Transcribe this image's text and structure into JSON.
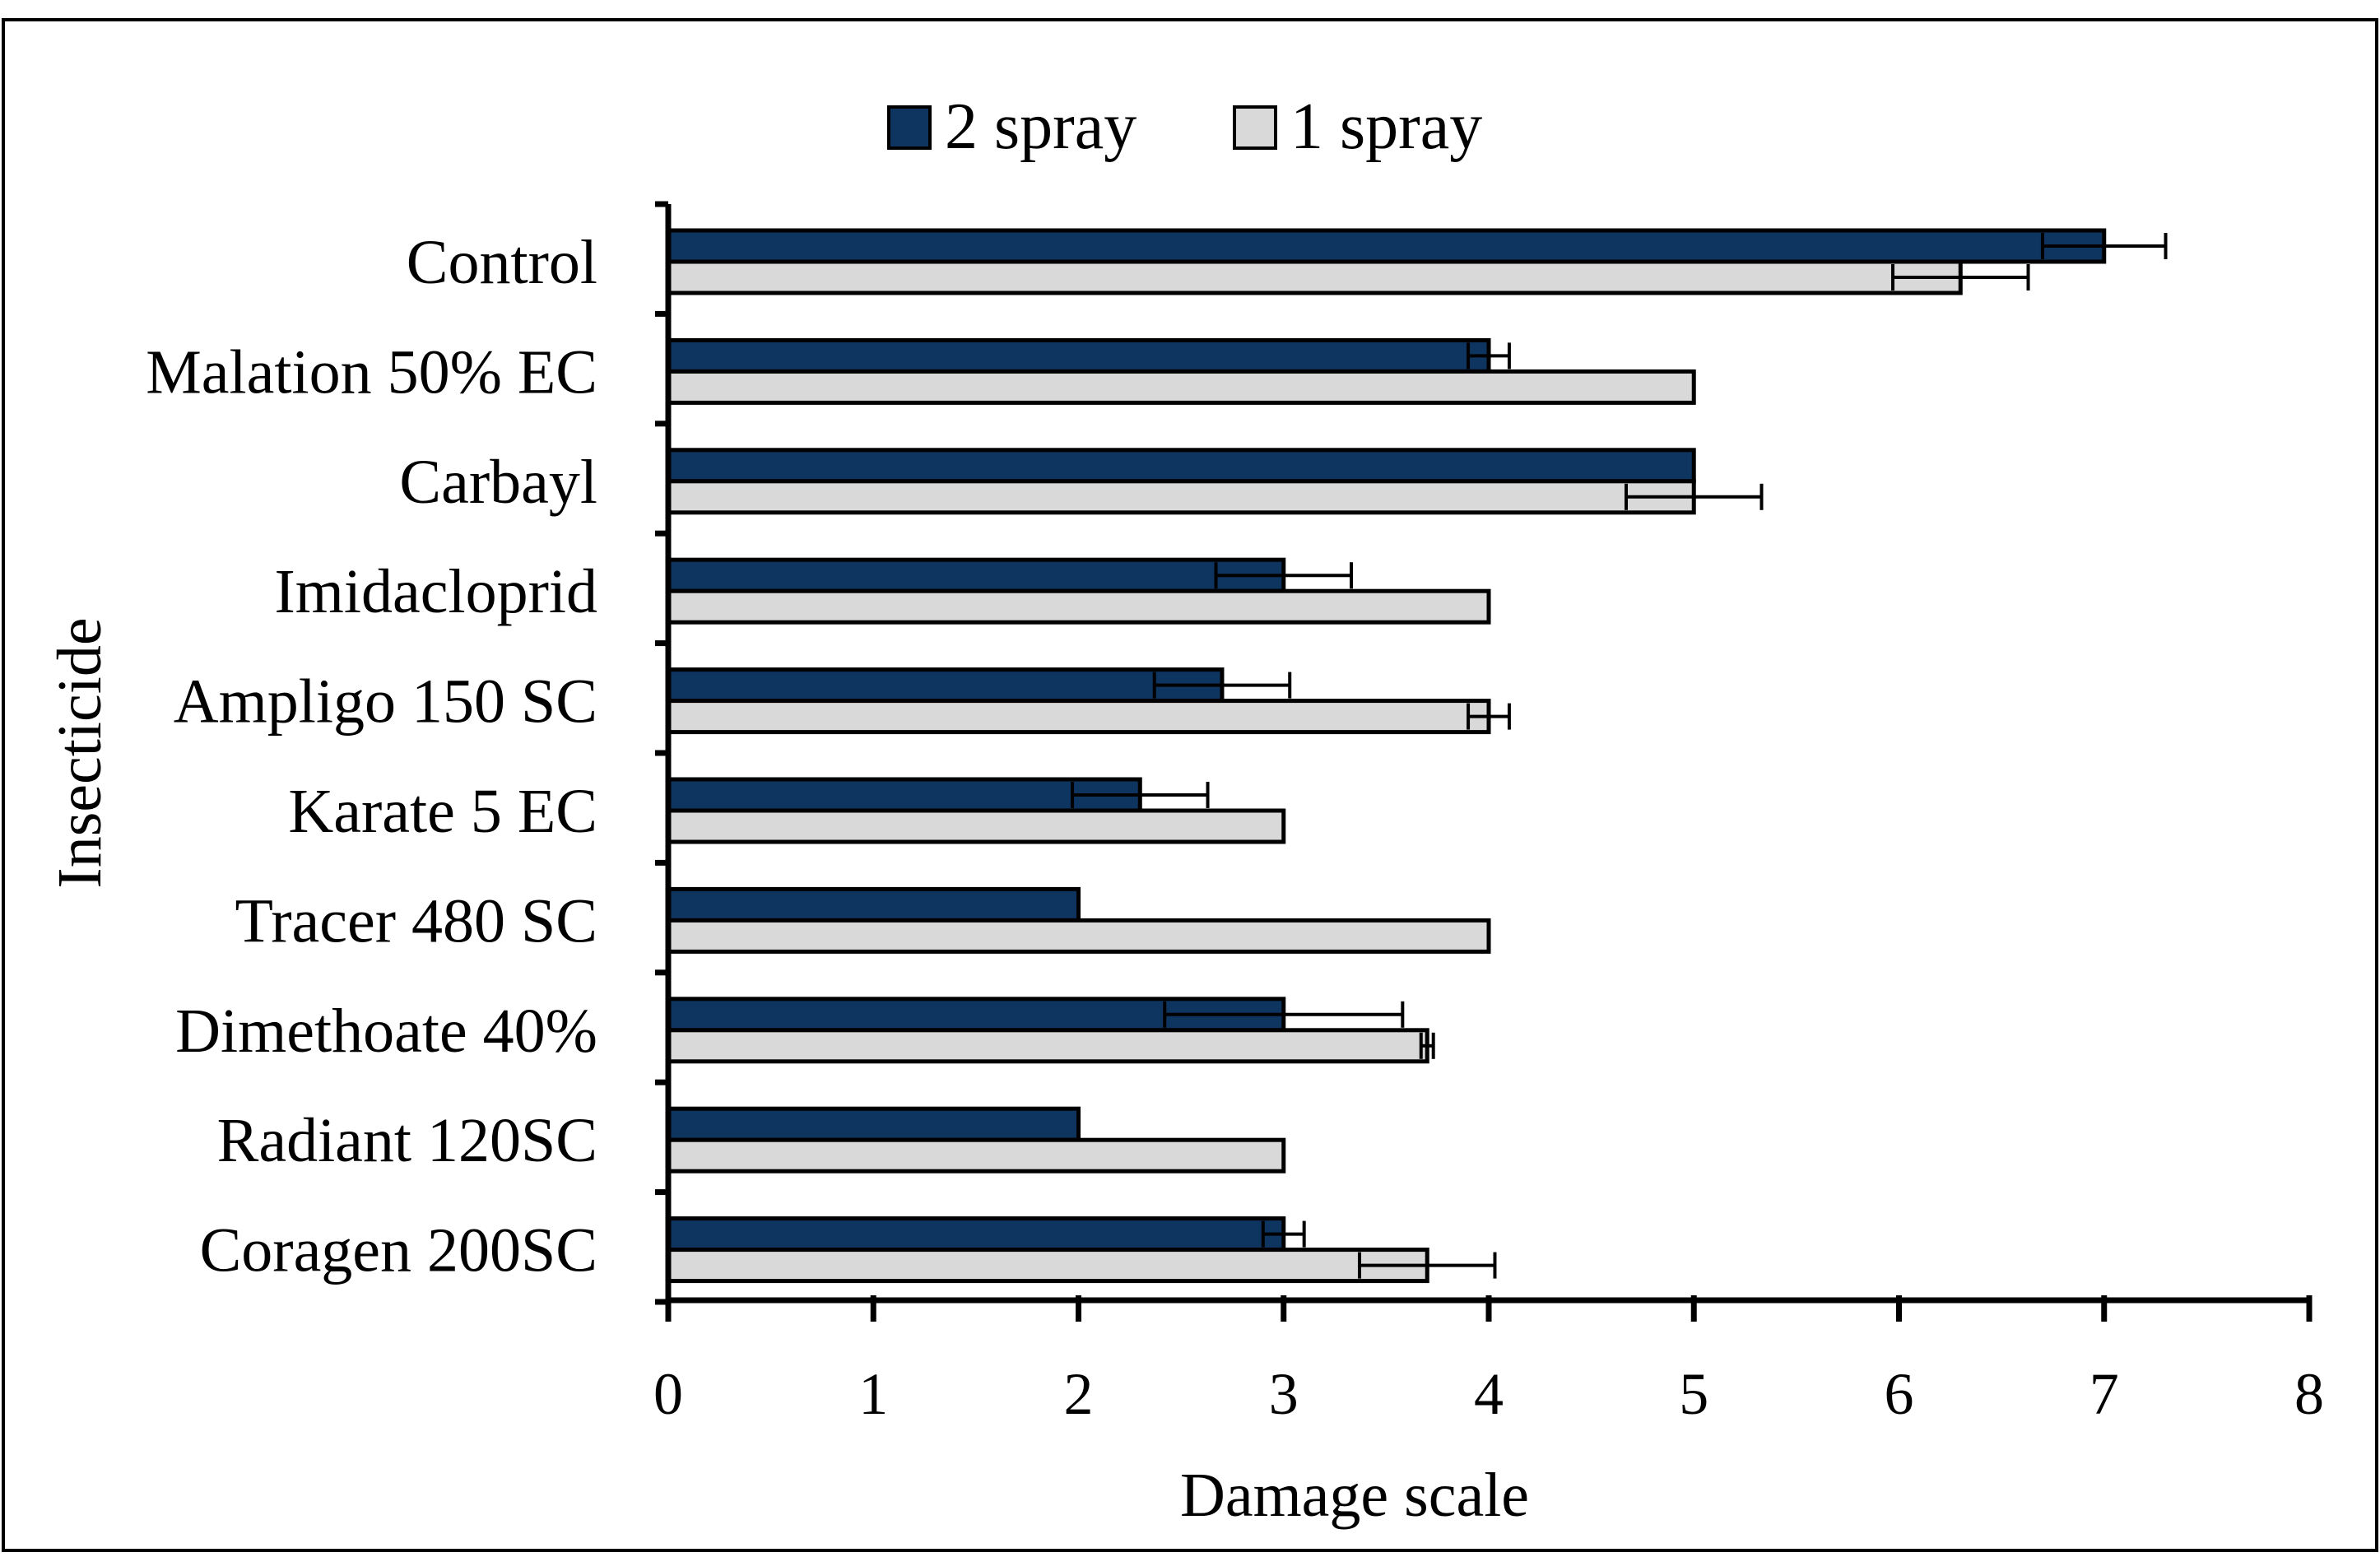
{
  "chart_data": {
    "type": "bar",
    "orientation": "horizontal",
    "title": "",
    "xlabel": "Damage scale",
    "ylabel": "Insecticide",
    "xlim": [
      0,
      8
    ],
    "xticks": [
      0,
      1,
      2,
      3,
      4,
      5,
      6,
      7,
      8
    ],
    "categories": [
      "Control",
      "Malation 50% EC",
      "Carbayl",
      "Imidacloprid",
      "Ampligo 150 SC",
      "Karate 5 EC",
      "Tracer 480 SC",
      "Dimethoate 40%",
      "Radiant 120SC",
      "Coragen 200SC"
    ],
    "series": [
      {
        "name": "2 spray",
        "color": "#0e3460",
        "values": [
          7.0,
          4.0,
          5.0,
          3.0,
          2.7,
          2.3,
          2.0,
          3.0,
          2.0,
          3.0
        ],
        "errors": [
          0.3,
          0.1,
          0.0,
          0.33,
          0.33,
          0.33,
          0.0,
          0.58,
          0.0,
          0.1
        ]
      },
      {
        "name": "1 spray",
        "color": "#d9d9d9",
        "values": [
          6.3,
          5.0,
          5.0,
          4.0,
          4.0,
          3.0,
          4.0,
          3.7,
          3.0,
          3.7
        ],
        "errors": [
          0.33,
          0.0,
          0.33,
          0.0,
          0.1,
          0.0,
          0.0,
          0.03,
          0.0,
          0.33
        ]
      }
    ],
    "legend_position": "top-center",
    "grid": false
  }
}
